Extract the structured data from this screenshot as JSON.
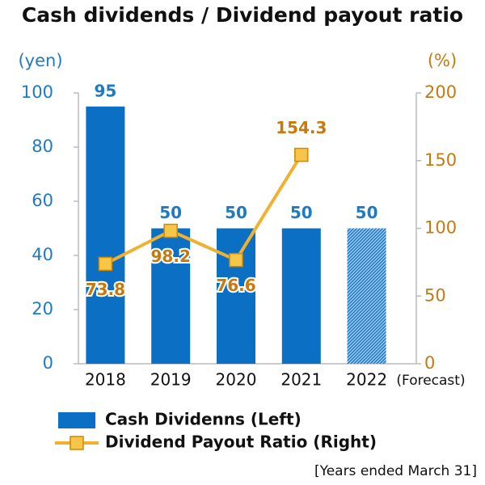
{
  "chart_data": {
    "type": "bar_line",
    "title": "Cash dividends / Dividend payout ratio",
    "y_label": "(yen)",
    "y2_label": "(%)",
    "categories": [
      "2018",
      "2019",
      "2020",
      "2021",
      "2022"
    ],
    "category_note": "(Forecast)",
    "series": [
      {
        "name": "Cash Dividenns (Left)",
        "type": "bar",
        "color": "#0b6fc4",
        "values": [
          95,
          50,
          50,
          50,
          50
        ],
        "hatched": [
          false,
          false,
          false,
          false,
          true
        ]
      },
      {
        "name": "Dividend Payout Ratio (Right)",
        "type": "line",
        "axis": "y2",
        "color": "#efb12f",
        "marker_color": "#f7c548",
        "values": [
          73.8,
          98.2,
          76.6,
          154.3,
          null
        ]
      }
    ],
    "ylim": [
      0,
      100
    ],
    "yticks": [
      0,
      20,
      40,
      60,
      80,
      100
    ],
    "y2lim": [
      0,
      200
    ],
    "y2ticks": [
      0,
      50,
      100,
      150,
      200
    ],
    "footnote": "[Years ended March 31]"
  }
}
